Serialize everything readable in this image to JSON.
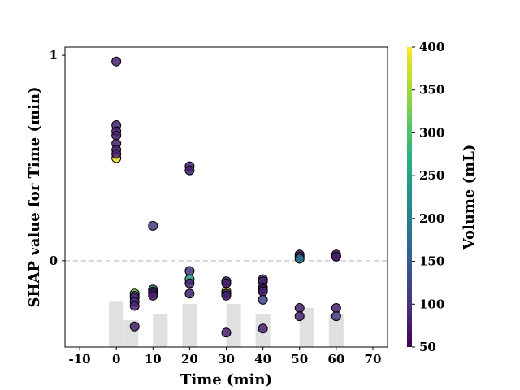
{
  "chart_data": {
    "type": "scatter",
    "xlabel": "Time (min)",
    "ylabel": "SHAP value for Time (min)",
    "colorbar_label": "Volume (mL)",
    "xlim": [
      -14,
      74
    ],
    "ylim": [
      -0.42,
      1.04
    ],
    "xticks": [
      -10,
      0,
      10,
      20,
      30,
      40,
      50,
      60,
      70
    ],
    "yticks": [
      0,
      1
    ],
    "colorbar_ticks": [
      50,
      100,
      150,
      200,
      250,
      300,
      350,
      400
    ],
    "colorbar_range": [
      50,
      400
    ],
    "colormap": "viridis",
    "zero_line": {
      "y": 0,
      "style": "dashed",
      "color": "#cccccc"
    },
    "histogram": {
      "color": "#e0e0e0",
      "bars": [
        {
          "x0": -2,
          "x1": 2,
          "top": -0.2
        },
        {
          "x0": 2,
          "x1": 6,
          "top": -0.29
        },
        {
          "x0": 10,
          "x1": 14,
          "top": -0.26
        },
        {
          "x0": 18,
          "x1": 22,
          "top": -0.21
        },
        {
          "x0": 30,
          "x1": 34,
          "top": -0.21
        },
        {
          "x0": 38,
          "x1": 42,
          "top": -0.26
        },
        {
          "x0": 50,
          "x1": 54,
          "top": -0.23
        },
        {
          "x0": 58,
          "x1": 62,
          "top": -0.26
        }
      ]
    },
    "points": [
      {
        "x": 0,
        "y": 0.97,
        "v": 80
      },
      {
        "x": 0,
        "y": 0.66,
        "v": 80
      },
      {
        "x": 0,
        "y": 0.63,
        "v": 80
      },
      {
        "x": 0,
        "y": 0.61,
        "v": 80
      },
      {
        "x": 0,
        "y": 0.57,
        "v": 80
      },
      {
        "x": 0,
        "y": 0.54,
        "v": 80
      },
      {
        "x": 0,
        "y": 0.5,
        "v": 390
      },
      {
        "x": 0,
        "y": 0.52,
        "v": 80
      },
      {
        "x": 5,
        "y": -0.16,
        "v": 330
      },
      {
        "x": 5,
        "y": -0.17,
        "v": 90
      },
      {
        "x": 5,
        "y": -0.18,
        "v": 90
      },
      {
        "x": 5,
        "y": -0.2,
        "v": 100
      },
      {
        "x": 5,
        "y": -0.22,
        "v": 80
      },
      {
        "x": 5,
        "y": -0.32,
        "v": 80
      },
      {
        "x": 10,
        "y": 0.17,
        "v": 110
      },
      {
        "x": 10,
        "y": -0.14,
        "v": 220
      },
      {
        "x": 10,
        "y": -0.15,
        "v": 90
      },
      {
        "x": 10,
        "y": -0.16,
        "v": 80
      },
      {
        "x": 10,
        "y": -0.17,
        "v": 80
      },
      {
        "x": 20,
        "y": 0.46,
        "v": 80
      },
      {
        "x": 20,
        "y": 0.44,
        "v": 80
      },
      {
        "x": 20,
        "y": -0.05,
        "v": 100
      },
      {
        "x": 20,
        "y": -0.09,
        "v": 240
      },
      {
        "x": 20,
        "y": -0.11,
        "v": 80
      },
      {
        "x": 20,
        "y": -0.16,
        "v": 80
      },
      {
        "x": 30,
        "y": -0.1,
        "v": 80
      },
      {
        "x": 30,
        "y": -0.11,
        "v": 80
      },
      {
        "x": 30,
        "y": -0.15,
        "v": 380
      },
      {
        "x": 30,
        "y": -0.16,
        "v": 80
      },
      {
        "x": 30,
        "y": -0.17,
        "v": 80
      },
      {
        "x": 30,
        "y": -0.35,
        "v": 80
      },
      {
        "x": 40,
        "y": -0.09,
        "v": 100
      },
      {
        "x": 40,
        "y": -0.1,
        "v": 80
      },
      {
        "x": 40,
        "y": -0.13,
        "v": 80
      },
      {
        "x": 40,
        "y": -0.14,
        "v": 80
      },
      {
        "x": 40,
        "y": -0.15,
        "v": 80
      },
      {
        "x": 40,
        "y": -0.19,
        "v": 120
      },
      {
        "x": 40,
        "y": -0.33,
        "v": 80
      },
      {
        "x": 50,
        "y": 0.03,
        "v": 80
      },
      {
        "x": 50,
        "y": 0.02,
        "v": 80
      },
      {
        "x": 50,
        "y": 0.01,
        "v": 190
      },
      {
        "x": 50,
        "y": -0.23,
        "v": 80
      },
      {
        "x": 50,
        "y": -0.27,
        "v": 80
      },
      {
        "x": 60,
        "y": 0.03,
        "v": 80
      },
      {
        "x": 60,
        "y": 0.02,
        "v": 80
      },
      {
        "x": 60,
        "y": 0.02,
        "v": 80
      },
      {
        "x": 60,
        "y": -0.23,
        "v": 80
      },
      {
        "x": 60,
        "y": -0.27,
        "v": 110
      }
    ]
  }
}
